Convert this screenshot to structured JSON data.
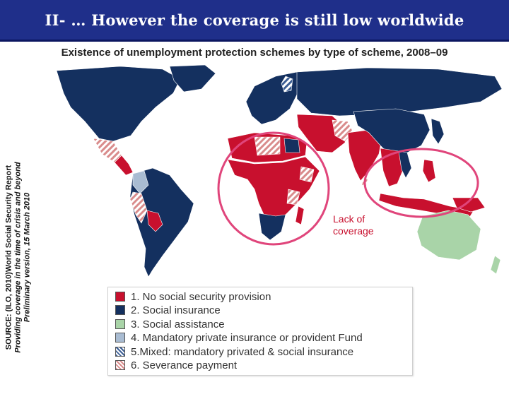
{
  "header": {
    "title": "II- … However the coverage is still low worldwide"
  },
  "subtitle": "Existence of unemployment protection schemes by type of scheme, 2008–09",
  "source": {
    "line1": "SOURCE: (ILO, 2010)World Social Security Report",
    "line2": "Providing coverage in the time of crisis and beyond",
    "line3": "Preliminary version, 15 March 2010"
  },
  "annotation": {
    "text": "Lack of coverage"
  },
  "colors": {
    "title_bg": "#1f2f8a",
    "no_provision": "#c8102e",
    "social_insurance": "#14305f",
    "social_assistance": "#a9d4a8",
    "mandatory_private": "#a9bcd2",
    "mixed": "#3d5f95",
    "severance": "#d98c8c",
    "highlight_circle": "#e0457b",
    "ocean": "#ffffff"
  },
  "legend": {
    "items": [
      {
        "label": "1. No social security provision",
        "icon": "solid-red-swatch"
      },
      {
        "label": "2. Social insurance",
        "icon": "solid-navy-swatch"
      },
      {
        "label": "3. Social assistance",
        "icon": "solid-green-swatch"
      },
      {
        "label": "4. Mandatory private insurance or provident Fund",
        "icon": "solid-lightblue-swatch"
      },
      {
        "label": "5.Mixed: mandatory privated & social insurance",
        "icon": "hatched-blue-swatch"
      },
      {
        "label": "6. Severance payment",
        "icon": "hatched-red-swatch"
      }
    ]
  }
}
